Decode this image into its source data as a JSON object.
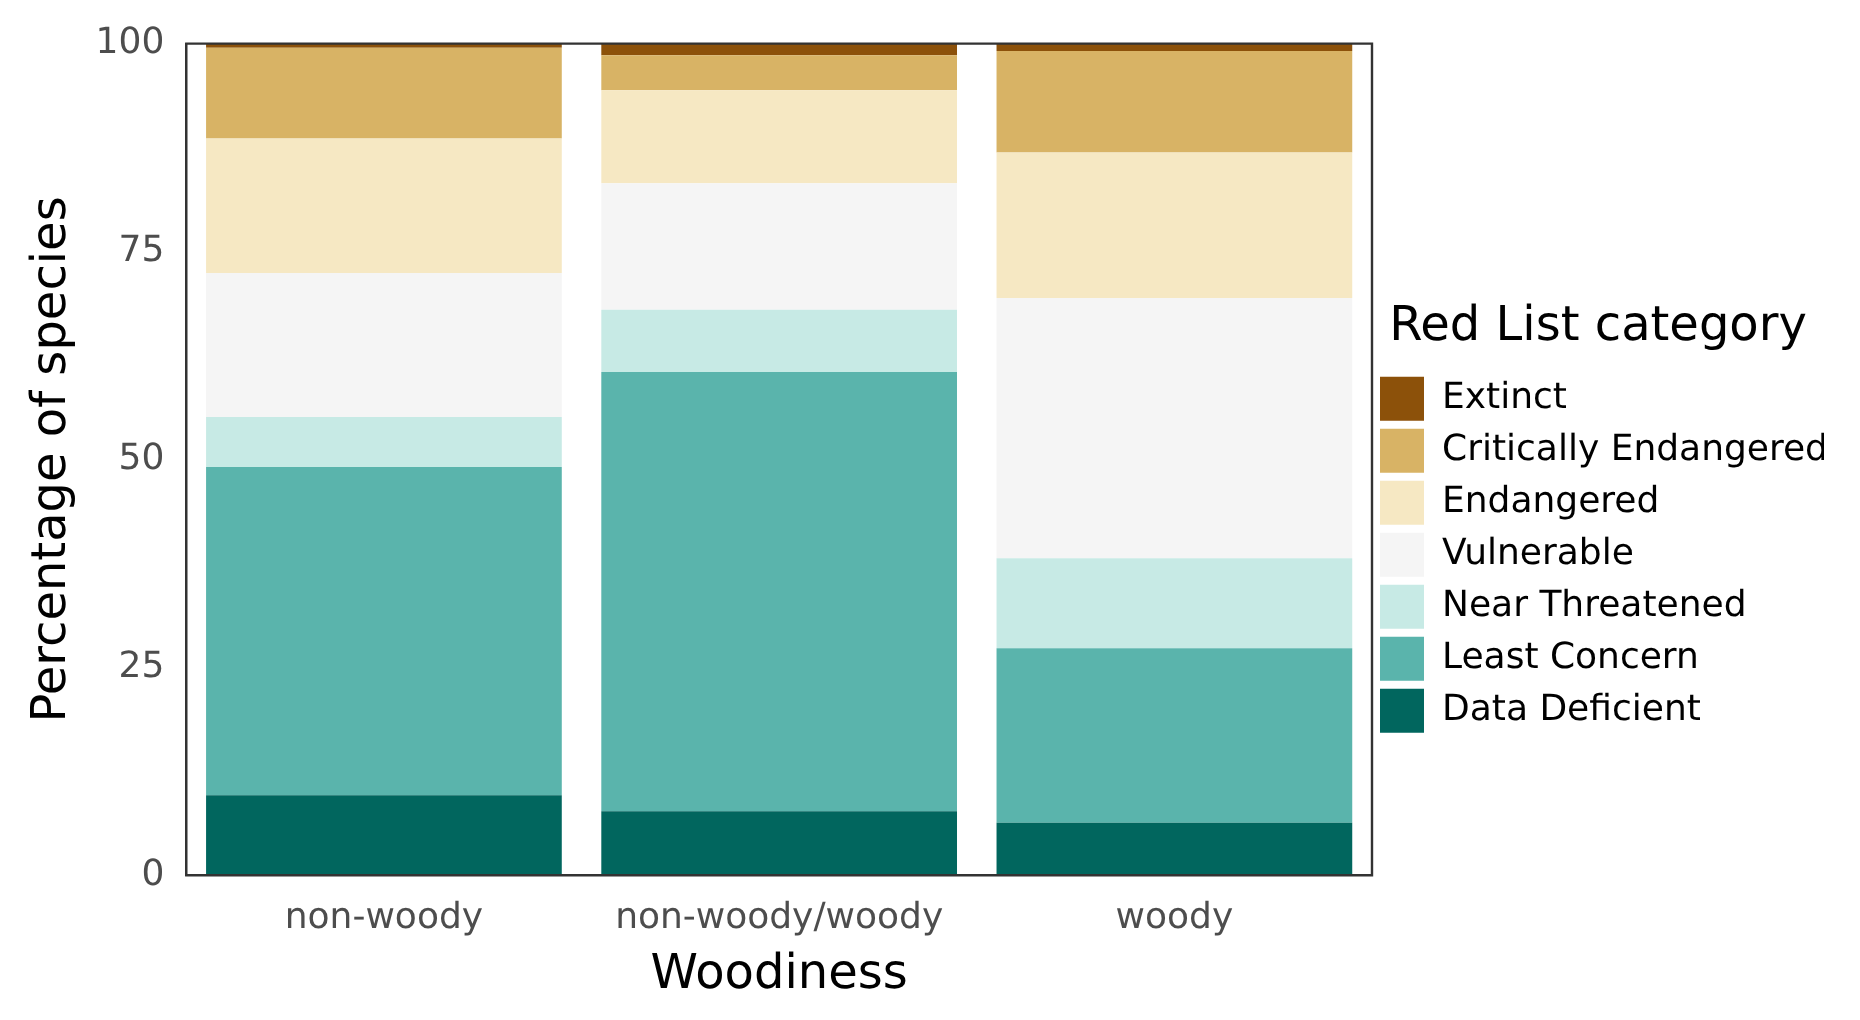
{
  "chart_data": {
    "type": "bar",
    "stacked": true,
    "xlabel": "Woodiness",
    "ylabel": "Percentage of species",
    "legend_title": "Red List category",
    "legend": "right",
    "grid": false,
    "categories": [
      "non-woody",
      "non-woody/woody",
      "woody"
    ],
    "ylim": [
      0,
      100
    ],
    "yticks": [
      0,
      25,
      50,
      75,
      100
    ],
    "series": [
      {
        "name": "Data Deficient",
        "color": "#01665e",
        "values": [
          9.6,
          7.7,
          6.3
        ]
      },
      {
        "name": "Least Concern",
        "color": "#5ab4ac",
        "values": [
          39.5,
          52.8,
          21.0
        ]
      },
      {
        "name": "Near Threatened",
        "color": "#c7eae5",
        "values": [
          6.0,
          7.5,
          10.8
        ]
      },
      {
        "name": "Vulnerable",
        "color": "#f5f5f5",
        "values": [
          17.3,
          15.2,
          31.3
        ]
      },
      {
        "name": "Endangered",
        "color": "#f6e8c3",
        "values": [
          16.2,
          11.2,
          17.5
        ]
      },
      {
        "name": "Critically Endangered",
        "color": "#d8b365",
        "values": [
          10.9,
          4.2,
          12.2
        ]
      },
      {
        "name": "Extinct",
        "color": "#8c510a",
        "values": [
          0.5,
          1.4,
          0.9
        ]
      }
    ]
  }
}
